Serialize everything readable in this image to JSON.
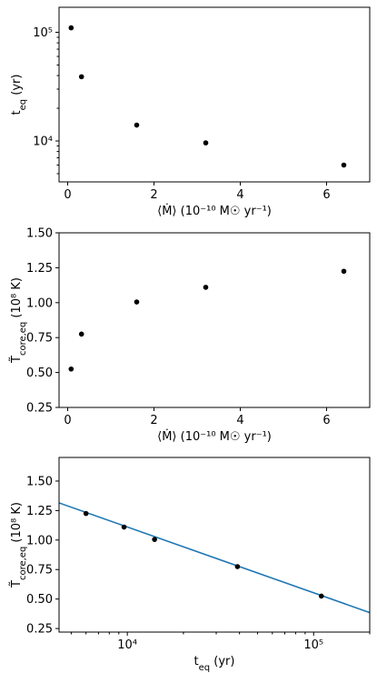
{
  "chart_data": [
    {
      "type": "scatter",
      "x": [
        0.08,
        0.32,
        1.6,
        3.2,
        6.4
      ],
      "y": [
        110000,
        39000,
        14000,
        9600,
        6000
      ],
      "xlim": [
        -0.2,
        7.0
      ],
      "ylim": [
        4200,
        170000
      ],
      "ylog": true,
      "xticks": [
        0,
        2,
        4,
        6
      ],
      "xtick_labels": [
        "0",
        "2",
        "4",
        "6"
      ],
      "yticks": [
        10000,
        100000
      ],
      "ytick_labels": [
        "10⁴",
        "10⁵"
      ],
      "xlabel": "⟨Ṁ⟩ (10⁻¹⁰ M☉ yr⁻¹)",
      "ylabel": "t_eq (yr)",
      "grid": false
    },
    {
      "type": "scatter",
      "x": [
        0.08,
        0.32,
        1.6,
        3.2,
        6.4
      ],
      "y": [
        0.525,
        0.775,
        1.005,
        1.11,
        1.225
      ],
      "xlim": [
        -0.2,
        7.0
      ],
      "ylim": [
        0.25,
        1.5
      ],
      "ylog": false,
      "xticks": [
        0,
        2,
        4,
        6
      ],
      "xtick_labels": [
        "0",
        "2",
        "4",
        "6"
      ],
      "yticks": [
        0.25,
        0.5,
        0.75,
        1.0,
        1.25,
        1.5
      ],
      "ytick_labels": [
        "0.25",
        "0.50",
        "0.75",
        "1.00",
        "1.25",
        "1.50"
      ],
      "xlabel": "⟨Ṁ⟩ (10⁻¹⁰ M☉ yr⁻¹)",
      "ylabel": "T̃_core,eq (10⁸ K)",
      "grid": false
    },
    {
      "type": "scatter",
      "x": [
        6000,
        9600,
        14000,
        39000,
        110000
      ],
      "y": [
        1.225,
        1.11,
        1.005,
        0.775,
        0.525
      ],
      "xlim": [
        4300,
        200000
      ],
      "ylim": [
        0.22,
        1.7
      ],
      "xlog": true,
      "fit_line": {
        "x": [
          4300,
          200000
        ],
        "y": [
          1.315,
          0.385
        ],
        "color": "#1f77b4"
      },
      "xticks": [
        10000,
        100000
      ],
      "xtick_labels": [
        "10⁴",
        "10⁵"
      ],
      "yticks": [
        0.25,
        0.5,
        0.75,
        1.0,
        1.25,
        1.5
      ],
      "ytick_labels": [
        "0.25",
        "0.50",
        "0.75",
        "1.00",
        "1.25",
        "1.50"
      ],
      "xlabel": "t_eq (yr)",
      "ylabel": "T̃_core,eq (10⁸ K)",
      "grid": false
    }
  ]
}
